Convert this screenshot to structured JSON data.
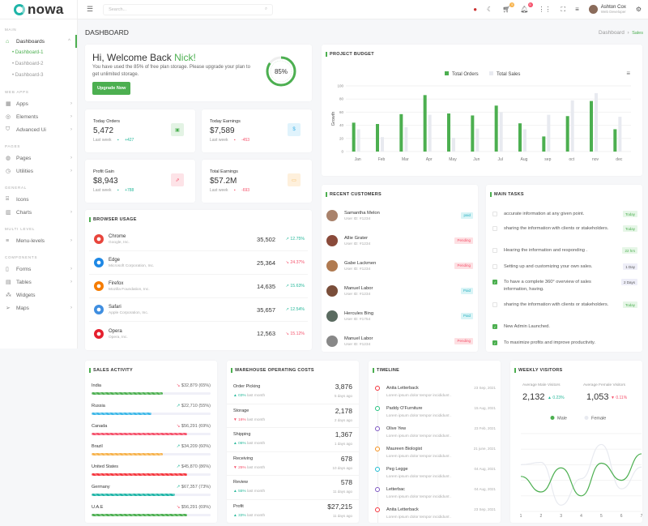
{
  "brand": {
    "name": "nowa"
  },
  "sidebar": {
    "sections": [
      {
        "title": "MAIN",
        "items": [
          {
            "label": "Dashboards",
            "icon": "home-icon",
            "active": true,
            "open": true,
            "children": [
              "Dashboard-1",
              "Dashboard-2",
              "Dashboard-3"
            ]
          }
        ]
      },
      {
        "title": "WEB APPS",
        "items": [
          {
            "label": "Apps",
            "icon": "apps-icon"
          },
          {
            "label": "Elements",
            "icon": "database-icon"
          },
          {
            "label": "Advanced Ui",
            "icon": "shield-icon"
          }
        ]
      },
      {
        "title": "PAGES",
        "items": [
          {
            "label": "Pages",
            "icon": "pages-icon"
          },
          {
            "label": "Utilities",
            "icon": "clock-icon"
          }
        ]
      },
      {
        "title": "GENERAL",
        "items": [
          {
            "label": "Icons",
            "icon": "gift-icon",
            "nochev": true
          },
          {
            "label": "Charts",
            "icon": "chart-icon"
          }
        ]
      },
      {
        "title": "MULTI LEVEL",
        "items": [
          {
            "label": "Menu-levels",
            "icon": "menu-icon"
          }
        ]
      },
      {
        "title": "COMPONENTS",
        "items": [
          {
            "label": "Forms",
            "icon": "file-icon"
          },
          {
            "label": "Tables",
            "icon": "table-icon"
          },
          {
            "label": "Widgets",
            "icon": "widgets-icon",
            "nochev": true
          },
          {
            "label": "Maps",
            "icon": "map-icon"
          }
        ]
      }
    ]
  },
  "header": {
    "search_placeholder": "Search...",
    "cart_count": "5",
    "notif_count": "5",
    "user_name": "Ashton Cox",
    "user_role": "Web Developer"
  },
  "page": {
    "title": "DASHBOARD",
    "breadcrumb": [
      "Dashboard",
      "Sales"
    ]
  },
  "welcome": {
    "greeting": "Hi, Welcome Back ",
    "name": "Nick!",
    "text": "You have used the 85% of free plan storage. Please upgrade your plan to get unlimited storage.",
    "button": "Upgrade Now",
    "percent": 85,
    "percent_label": "85%"
  },
  "stats": [
    {
      "label": "Today Orders",
      "value": "5,472",
      "period": "Last week",
      "change": "+427",
      "dir": "up",
      "icon": "calendar-icon",
      "color": "#4caf50",
      "bg": "#e3f3e4"
    },
    {
      "label": "Today Earnings",
      "value": "$7,589",
      "period": "Last week",
      "change": "-453",
      "dir": "down",
      "icon": "dollar-icon",
      "color": "#3bb0e8",
      "bg": "#e0f3fc"
    },
    {
      "label": "Profit Gain",
      "value": "$8,943",
      "period": "Last week",
      "change": "+788",
      "dir": "up",
      "icon": "external-link-icon",
      "color": "#f5516b",
      "bg": "#fde3e7"
    },
    {
      "label": "Total Earnings",
      "value": "$57.2M",
      "period": "Last week",
      "change": "-693",
      "dir": "down",
      "icon": "wallet-icon",
      "color": "#f7b24a",
      "bg": "#fef0dc"
    }
  ],
  "browser_usage": {
    "title": "BROWSER USAGE",
    "rows": [
      {
        "name": "Chrome",
        "corp": "Google, Inc.",
        "value": "35,502",
        "pct": "12.75%",
        "dir": "up",
        "color": "#e8453c"
      },
      {
        "name": "Edge",
        "corp": "Microsoft Corporation, Inc.",
        "value": "25,364",
        "pct": "24.37%",
        "dir": "down",
        "color": "#1e88e5"
      },
      {
        "name": "Firefox",
        "corp": "Mozilla Foundation, Inc.",
        "value": "14,635",
        "pct": "15.63%",
        "dir": "up",
        "color": "#f57c00"
      },
      {
        "name": "Safari",
        "corp": "Apple Corporation, Inc.",
        "value": "35,657",
        "pct": "12.54%",
        "dir": "up",
        "color": "#3f8ee0"
      },
      {
        "name": "Opera",
        "corp": "Opera, Inc.",
        "value": "12,563",
        "pct": "15.12%",
        "dir": "down",
        "color": "#e5202e"
      }
    ]
  },
  "chart_data": [
    {
      "type": "bar",
      "title": "PROJECT BUDGET",
      "ylabel": "Growth",
      "ylim": [
        0,
        100
      ],
      "yticks": [
        0,
        20,
        40,
        60,
        80,
        100
      ],
      "grid": true,
      "legend": "top",
      "categories": [
        "Jan",
        "Feb",
        "Mar",
        "Apr",
        "May",
        "Jun",
        "Jul",
        "Aug",
        "sep",
        "oct",
        "nov",
        "dec"
      ],
      "series": [
        {
          "name": "Total Orders",
          "color": "#4caf50",
          "values": [
            44,
            42,
            57,
            86,
            58,
            55,
            70,
            43,
            23,
            54,
            77,
            34
          ]
        },
        {
          "name": "Total Sales",
          "color": "#e8eaf0",
          "values": [
            34,
            22,
            37,
            56,
            21,
            35,
            60,
            34,
            56,
            78,
            89,
            53
          ]
        }
      ]
    },
    {
      "type": "line",
      "title": "WEEKLY VISITORS",
      "legend": "top",
      "grid": true,
      "categories": [
        "1",
        "2",
        "3",
        "4",
        "5",
        "6",
        "7"
      ],
      "series": [
        {
          "name": "Male",
          "color": "#4caf50",
          "values": [
            45,
            25,
            56,
            20,
            62,
            40,
            74
          ]
        },
        {
          "name": "Female",
          "color": "#e8eaf0",
          "values": [
            60,
            63,
            8,
            42,
            86,
            29,
            57
          ]
        }
      ]
    }
  ],
  "customers": {
    "title": "RECENT CUSTOMERS",
    "rows": [
      {
        "name": "Samantha Melon",
        "id": "User ID: #1234",
        "status": "paid",
        "type": "paid"
      },
      {
        "name": "Allie Grater",
        "id": "User ID: #1234",
        "status": "Pending",
        "type": "pending"
      },
      {
        "name": "Gabe Lackmen",
        "id": "User ID: #1234",
        "status": "Pending",
        "type": "pending"
      },
      {
        "name": "Manuel Labor",
        "id": "User ID: #1234",
        "status": "Paid",
        "type": "paid"
      },
      {
        "name": "Hercules Bing",
        "id": "User ID: #1754",
        "status": "Paid",
        "type": "paid"
      },
      {
        "name": "Manuel Labor",
        "id": "User ID: #1234",
        "status": "Pending",
        "type": "pending"
      }
    ]
  },
  "tasks": {
    "title": "MAIN TASKS",
    "rows": [
      {
        "text": "accurate information at any given point.",
        "tag": "Today",
        "done": false
      },
      {
        "text": "sharing the information with clients or stakeholders.",
        "tag": "Today",
        "done": false
      },
      {
        "text": "Hearing the information and responding .",
        "tag": "22 hrs",
        "done": false
      },
      {
        "text": "Setting up and customizing your own sales.",
        "tag": "1 Day",
        "done": false,
        "gray": true
      },
      {
        "text": "To have a complete 360° overview of sales information, having.",
        "tag": "2 Days",
        "done": true,
        "gray": true
      },
      {
        "text": "sharing the information with clients or stakeholders.",
        "tag": "Today",
        "done": false
      },
      {
        "text": "New Admin Launched.",
        "tag": "",
        "done": true
      },
      {
        "text": "To maximize profits and improve productivity.",
        "tag": "",
        "done": true
      }
    ]
  },
  "sales_activity": {
    "title": "SALES ACTIVITY",
    "rows": [
      {
        "country": "India",
        "value": "$32,879 (65%)",
        "dir": "down",
        "pct": 60,
        "color": "#4caf50"
      },
      {
        "country": "Russia",
        "value": "$22,710 (55%)",
        "dir": "up",
        "pct": 50,
        "color": "#3bb7e8"
      },
      {
        "country": "Canada",
        "value": "$56,291 (69%)",
        "dir": "down",
        "pct": 80,
        "color": "#f5516b"
      },
      {
        "country": "Brazil",
        "value": "$34,209 (60%)",
        "dir": "up",
        "pct": 60,
        "color": "#f7b24a"
      },
      {
        "country": "United States",
        "value": "$45,870 (86%)",
        "dir": "up",
        "pct": 80,
        "color": "#f5353d"
      },
      {
        "country": "Germany",
        "value": "$67,357 (73%)",
        "dir": "up",
        "pct": 70,
        "color": "#1fb5a8"
      },
      {
        "country": "U.A.E",
        "value": "$56,291 (69%)",
        "dir": "down",
        "pct": 80,
        "color": "#4caf50"
      }
    ]
  },
  "warehouse": {
    "title": "WAREHOUSE OPERATING COSTS",
    "rows": [
      {
        "name": "Order Picking",
        "value": "3,876",
        "change": "03%",
        "dir": "up",
        "note": "last month",
        "ago": "5 days ago"
      },
      {
        "name": "Storage",
        "value": "2,178",
        "change": "16%",
        "dir": "down",
        "note": "last month",
        "ago": "2 days ago"
      },
      {
        "name": "Shipping",
        "value": "1,367",
        "change": "06%",
        "dir": "up",
        "note": "last month",
        "ago": "1 days ago"
      },
      {
        "name": "Receiving",
        "value": "678",
        "change": "25%",
        "dir": "down",
        "note": "last month",
        "ago": "10 days ago"
      },
      {
        "name": "Review",
        "value": "578",
        "change": "55%",
        "dir": "up",
        "note": "last month",
        "ago": "11 days ago"
      },
      {
        "name": "Profit",
        "value": "$27,215",
        "change": "33%",
        "dir": "up",
        "note": "last month",
        "ago": "11 days ago"
      }
    ]
  },
  "timeline": {
    "title": "TIMELINE",
    "rows": [
      {
        "name": "Anita Letterback",
        "date": "23 Sep, 2021",
        "text": "Lorem ipsum dolor tempor incididunt .",
        "color": "#f5353d"
      },
      {
        "name": "Paddy O'Furniture",
        "date": "15 Aug, 2021",
        "text": "Lorem ipsum dolor tempor incididunt .",
        "color": "#26c281"
      },
      {
        "name": "Olive Yew",
        "date": "23 Feb, 2021",
        "text": "Lorem ipsum dolor tempor incididunt .",
        "color": "#7e57c2"
      },
      {
        "name": "Maureen Biologist",
        "date": "21 june, 2021",
        "text": "Lorem ipsum dolor tempor incididunt .",
        "color": "#f5901e"
      },
      {
        "name": "Peg Legge",
        "date": "04 Aug, 2021",
        "text": "Lorem ipsum dolor tempor incididunt .",
        "color": "#1fbcd2"
      },
      {
        "name": "Letterbac",
        "date": "04 Aug, 2021",
        "text": "Lorem ipsum dolor tempor incididunt .",
        "color": "#7e57c2"
      },
      {
        "name": "Anita Letterback",
        "date": "23 Sep, 2021",
        "text": "Lorem ipsum dolor tempor incididunt .",
        "color": "#f5353d"
      }
    ]
  },
  "visitors": {
    "male_label": "Average Male Visitors",
    "male_value": "2,132",
    "male_change": "0.23%",
    "female_label": "Average Female Visitors",
    "female_value": "1,053",
    "female_change": "0.11%"
  }
}
